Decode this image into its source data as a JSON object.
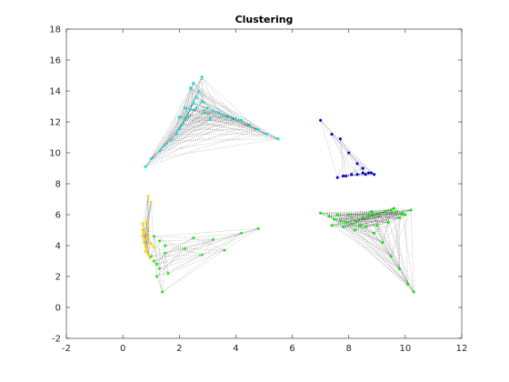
{
  "chart_data": {
    "type": "scatter",
    "title": "Clustering",
    "xlabel": "",
    "ylabel": "",
    "xlim": [
      -2,
      12
    ],
    "ylim": [
      -2,
      18
    ],
    "xticks": [
      "-2",
      "0",
      "2",
      "4",
      "6",
      "8",
      "10",
      "12"
    ],
    "yticks": [
      "-2",
      "0",
      "2",
      "4",
      "6",
      "8",
      "10",
      "12",
      "14",
      "16",
      "18"
    ],
    "grid": false,
    "legend": "none",
    "edges_style": "dotted black lines connecting points within each cluster",
    "clusters": [
      {
        "color": "#00e5e5",
        "points": [
          [
            0.8,
            9.1
          ],
          [
            1.0,
            9.6
          ],
          [
            1.3,
            10.1
          ],
          [
            1.5,
            10.5
          ],
          [
            1.7,
            10.8
          ],
          [
            1.9,
            11.2
          ],
          [
            2.0,
            11.5
          ],
          [
            2.1,
            11.8
          ],
          [
            2.2,
            12.1
          ],
          [
            2.3,
            12.4
          ],
          [
            2.4,
            12.8
          ],
          [
            2.5,
            13.2
          ],
          [
            2.6,
            13.6
          ],
          [
            2.7,
            14.0
          ],
          [
            2.5,
            14.5
          ],
          [
            2.8,
            14.9
          ],
          [
            2.4,
            14.2
          ],
          [
            2.6,
            12.9
          ],
          [
            2.9,
            12.6
          ],
          [
            3.0,
            12.9
          ],
          [
            3.2,
            12.7
          ],
          [
            3.4,
            12.6
          ],
          [
            3.6,
            12.4
          ],
          [
            3.8,
            12.3
          ],
          [
            4.0,
            12.2
          ],
          [
            4.2,
            12.1
          ],
          [
            4.5,
            11.8
          ],
          [
            4.8,
            11.5
          ],
          [
            5.1,
            11.2
          ],
          [
            5.5,
            10.9
          ],
          [
            2.2,
            12.9
          ],
          [
            2.0,
            12.3
          ],
          [
            3.1,
            12.2
          ],
          [
            2.8,
            13.3
          ]
        ]
      },
      {
        "color": "#0000cc",
        "points": [
          [
            7.0,
            12.1
          ],
          [
            7.4,
            11.2
          ],
          [
            7.7,
            10.9
          ],
          [
            8.0,
            10.0
          ],
          [
            8.3,
            9.3
          ],
          [
            8.5,
            9.0
          ],
          [
            7.6,
            8.4
          ],
          [
            7.9,
            8.5
          ],
          [
            8.1,
            8.6
          ],
          [
            8.3,
            8.6
          ],
          [
            8.5,
            8.7
          ],
          [
            8.7,
            8.7
          ],
          [
            8.9,
            8.6
          ],
          [
            7.8,
            8.5
          ],
          [
            8.6,
            8.6
          ],
          [
            8.8,
            8.7
          ]
        ]
      },
      {
        "color": "#ffd700",
        "points": [
          [
            0.7,
            5.4
          ],
          [
            0.7,
            5.0
          ],
          [
            0.75,
            4.8
          ],
          [
            0.7,
            4.6
          ],
          [
            0.8,
            4.4
          ],
          [
            0.75,
            4.2
          ],
          [
            0.8,
            4.0
          ],
          [
            0.85,
            3.8
          ],
          [
            0.8,
            3.6
          ],
          [
            0.9,
            3.4
          ],
          [
            0.95,
            3.2
          ],
          [
            0.9,
            5.2
          ],
          [
            0.9,
            7.2
          ],
          [
            1.0,
            6.8
          ],
          [
            0.8,
            4.9
          ],
          [
            0.9,
            4.5
          ],
          [
            1.0,
            4.1
          ],
          [
            1.1,
            3.9
          ],
          [
            0.85,
            5.6
          ]
        ]
      },
      {
        "color": "#33dd33",
        "points": [
          [
            1.0,
            3.3
          ],
          [
            1.1,
            3.0
          ],
          [
            1.2,
            2.8
          ],
          [
            1.3,
            2.5
          ],
          [
            1.2,
            2.0
          ],
          [
            1.4,
            1.0
          ],
          [
            1.3,
            4.3
          ],
          [
            1.5,
            3.5
          ],
          [
            2.2,
            3.8
          ],
          [
            3.2,
            4.4
          ],
          [
            4.2,
            4.8
          ],
          [
            4.8,
            5.1
          ],
          [
            2.8,
            3.4
          ],
          [
            1.1,
            4.6
          ],
          [
            1.6,
            2.2
          ],
          [
            1.5,
            4.0
          ],
          [
            3.6,
            3.7
          ],
          [
            2.5,
            4.5
          ]
        ]
      },
      {
        "color": "#00ee00",
        "points": [
          [
            7.0,
            6.1
          ],
          [
            7.3,
            5.9
          ],
          [
            7.5,
            5.7
          ],
          [
            7.7,
            5.6
          ],
          [
            7.9,
            5.5
          ],
          [
            8.1,
            5.4
          ],
          [
            8.3,
            5.6
          ],
          [
            8.5,
            5.8
          ],
          [
            8.7,
            5.9
          ],
          [
            8.9,
            6.0
          ],
          [
            9.1,
            6.1
          ],
          [
            9.3,
            6.2
          ],
          [
            9.5,
            6.3
          ],
          [
            9.7,
            6.2
          ],
          [
            9.9,
            6.1
          ],
          [
            10.0,
            6.0
          ],
          [
            7.4,
            5.3
          ],
          [
            7.8,
            5.2
          ],
          [
            8.2,
            5.0
          ],
          [
            8.6,
            5.2
          ],
          [
            9.0,
            5.3
          ],
          [
            9.4,
            5.5
          ],
          [
            9.8,
            5.8
          ],
          [
            8.9,
            4.8
          ],
          [
            9.2,
            4.2
          ],
          [
            9.5,
            3.3
          ],
          [
            9.8,
            2.5
          ],
          [
            10.1,
            1.5
          ],
          [
            10.3,
            1.0
          ],
          [
            8.0,
            6.0
          ],
          [
            8.8,
            6.2
          ],
          [
            9.6,
            6.4
          ],
          [
            10.2,
            6.3
          ],
          [
            7.6,
            6.0
          ],
          [
            8.4,
            5.3
          ]
        ]
      }
    ]
  }
}
